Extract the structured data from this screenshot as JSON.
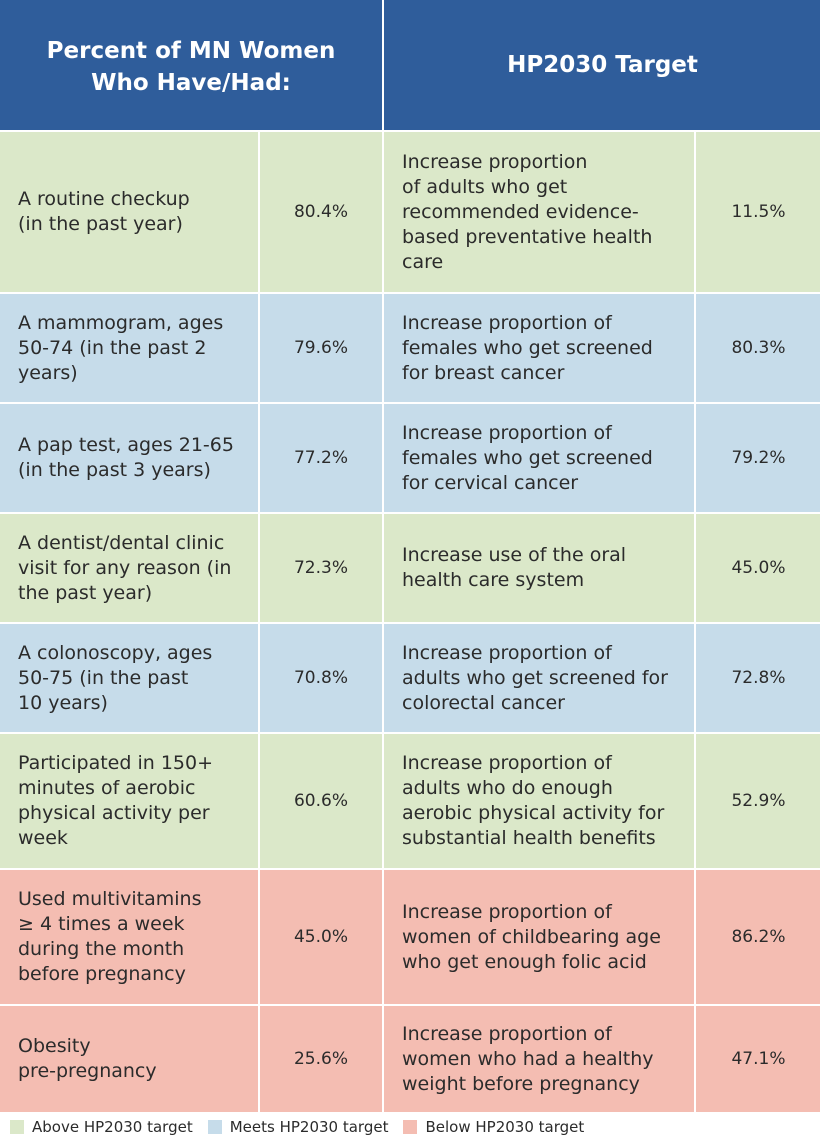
{
  "header": {
    "left_line1": "Percent of MN Women",
    "left_line2": "Who Have/Had:",
    "right": "HP2030 Target"
  },
  "colors": {
    "header": "#2f5d9b",
    "above": "#dbe8c9",
    "meets": "#c6dcea",
    "below": "#f4bdb2"
  },
  "rows": [
    {
      "status": "above",
      "measure": [
        "A routine checkup",
        "(in the past year)"
      ],
      "mn_value": "80.4%",
      "target_text": [
        "Increase proportion",
        "of adults who get",
        "recommended evidence-",
        "based preventative health",
        "care"
      ],
      "target_value": "11.5%"
    },
    {
      "status": "meets",
      "measure": [
        "A mammogram, ages",
        "50-74 (in the past 2",
        "years)"
      ],
      "mn_value": "79.6%",
      "target_text": [
        "Increase proportion of",
        "females who get screened",
        "for breast cancer"
      ],
      "target_value": "80.3%"
    },
    {
      "status": "meets",
      "measure": [
        "A pap test, ages 21-65",
        "(in the past 3 years)"
      ],
      "mn_value": "77.2%",
      "target_text": [
        "Increase proportion of",
        "females who get screened",
        "for cervical cancer"
      ],
      "target_value": "79.2%"
    },
    {
      "status": "above",
      "measure": [
        "A dentist/dental clinic",
        "visit for any reason (in",
        "the past year)"
      ],
      "mn_value": "72.3%",
      "target_text": [
        "Increase use of the oral",
        "health care system"
      ],
      "target_value": "45.0%"
    },
    {
      "status": "meets",
      "measure": [
        "A colonoscopy, ages",
        "50-75 (in the past",
        "10 years)"
      ],
      "mn_value": "70.8%",
      "target_text": [
        "Increase proportion of",
        "adults who get screened for",
        "colorectal cancer"
      ],
      "target_value": "72.8%"
    },
    {
      "status": "above",
      "measure": [
        "Participated in 150+",
        "minutes of aerobic",
        "physical activity per",
        "week"
      ],
      "mn_value": "60.6%",
      "target_text": [
        "Increase proportion of",
        "adults who do enough",
        "aerobic physical activity for",
        "substantial health benefits"
      ],
      "target_value": "52.9%"
    },
    {
      "status": "below",
      "measure": [
        "Used multivitamins",
        "≥ 4 times a week",
        "during the month",
        "before pregnancy"
      ],
      "mn_value": "45.0%",
      "target_text": [
        "Increase proportion of",
        "women of childbearing age",
        "who get enough folic acid"
      ],
      "target_value": "86.2%"
    },
    {
      "status": "below",
      "measure": [
        "Obesity",
        "pre-pregnancy"
      ],
      "mn_value": "25.6%",
      "target_text": [
        "Increase proportion of",
        "women who had a healthy",
        "weight before pregnancy"
      ],
      "target_value": "47.1%"
    }
  ],
  "legend": [
    {
      "status": "above",
      "label": "Above HP2030 target"
    },
    {
      "status": "meets",
      "label": "Meets HP2030 target"
    },
    {
      "status": "below",
      "label": "Below HP2030 target"
    }
  ]
}
